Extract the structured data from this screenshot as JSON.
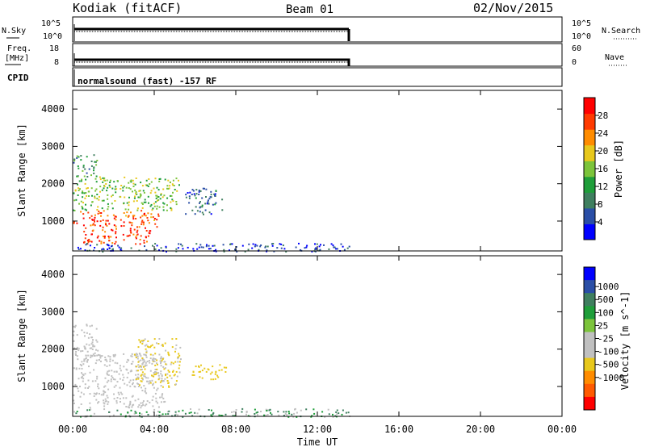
{
  "header": {
    "station": "Kodiak (fitACF)",
    "beam": "Beam 01",
    "date": "02/Nov/2015"
  },
  "strips": {
    "nsky_label": "N.Sky",
    "nsearch_label": "N.Search",
    "noise_ticks_left": [
      "10^5",
      "10^0"
    ],
    "noise_ticks_right": [
      "10^5",
      "10^0"
    ],
    "freq_label_line1": "Freq.",
    "freq_label_line2": "[MHz]",
    "freq_ticks": [
      "18",
      "8"
    ],
    "nave_label": "Nave",
    "nave_ticks": [
      "60",
      "0"
    ],
    "cpid_label": "CPID",
    "cpid_text": "normalsound (fast) -157 RF"
  },
  "colors": {
    "power_scale": [
      "#0000ff",
      "#2a4ea6",
      "#3f7f5f",
      "#1f9e3a",
      "#7cc43b",
      "#e8c81c",
      "#ff8c00",
      "#ff3a00",
      "#ff0000"
    ],
    "velocity_scale": [
      "#ff0000",
      "#ff5a00",
      "#ff8c00",
      "#e8c81c",
      "#c0c0c0",
      "#c0c0c0",
      "#7cc43b",
      "#1f9e3a",
      "#3f7f5f",
      "#2a4ea6",
      "#0000ff"
    ],
    "ground_scatter": "#c0c0c0"
  },
  "chart_data": [
    {
      "type": "heatmap",
      "name": "power",
      "ylabel": "Slant Range [km]",
      "ylim": [
        200,
        4500
      ],
      "yticks": [
        "1000",
        "2000",
        "3000",
        "4000"
      ],
      "xlim": [
        0,
        24
      ],
      "xticks": [
        "00:00",
        "04:00",
        "08:00",
        "12:00",
        "16:00",
        "20:00",
        "00:00"
      ],
      "colorbar_label": "Power [dB]",
      "colorbar_ticks": [
        "4",
        "8",
        "12",
        "16",
        "20",
        "24",
        "28"
      ],
      "colorbar_range": [
        0,
        32
      ],
      "regions": [
        {
          "t0": 0.0,
          "t1": 4.2,
          "r0": 850,
          "r1": 1300,
          "value": 26
        },
        {
          "t0": 0.5,
          "t1": 3.8,
          "r0": 400,
          "r1": 850,
          "value": 28
        },
        {
          "t0": 0.0,
          "t1": 5.2,
          "r0": 1300,
          "r1": 2200,
          "value": 16
        },
        {
          "t0": 0.0,
          "t1": 1.2,
          "r0": 2200,
          "r1": 2800,
          "value": 11
        },
        {
          "t0": 5.5,
          "t1": 7.3,
          "r0": 1200,
          "r1": 1900,
          "value": 7
        },
        {
          "t0": 0.0,
          "t1": 13.6,
          "r0": 200,
          "r1": 420,
          "value": 5
        }
      ]
    },
    {
      "type": "heatmap",
      "name": "velocity",
      "ylabel": "Slant Range [km]",
      "ylim": [
        200,
        4500
      ],
      "yticks": [
        "1000",
        "2000",
        "3000",
        "4000"
      ],
      "xlim": [
        0,
        24
      ],
      "xticks": [
        "00:00",
        "04:00",
        "08:00",
        "12:00",
        "16:00",
        "20:00",
        "00:00"
      ],
      "xlabel": "Time UT",
      "colorbar_label": "Velocity [m s^-1]",
      "colorbar_ticks": [
        "1000",
        "500",
        "100",
        "25",
        "-25",
        "-100",
        "-500",
        "-1000"
      ],
      "regions": [
        {
          "t0": 0.0,
          "t1": 4.5,
          "r0": 450,
          "r1": 1900,
          "value": 0
        },
        {
          "t0": 0.0,
          "t1": 1.2,
          "r0": 1800,
          "r1": 2700,
          "value": 0
        },
        {
          "t0": 3.0,
          "t1": 5.3,
          "r0": 1000,
          "r1": 2300,
          "value": -150
        },
        {
          "t0": 5.8,
          "t1": 7.5,
          "r0": 1200,
          "r1": 1600,
          "value": -200
        },
        {
          "t0": 0.0,
          "t1": 13.6,
          "r0": 200,
          "r1": 420,
          "value": 60
        }
      ]
    }
  ]
}
